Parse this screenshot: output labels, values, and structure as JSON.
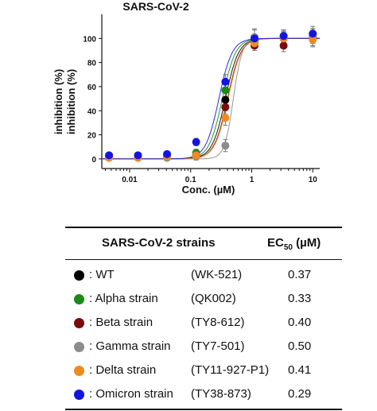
{
  "chart_data": {
    "type": "scatter",
    "title": "SARS-CoV-2",
    "xlabel": "Conc. (µM)",
    "ylabel": "inhibition (%)",
    "ylabel_repeat": "inhibition (%)",
    "xscale": "log",
    "xlim": [
      0.0035,
      13
    ],
    "ylim": [
      -8,
      120
    ],
    "xticks": [
      0.01,
      0.1,
      1,
      10
    ],
    "xtick_labels": [
      "0.01",
      "0.1",
      "1",
      "10"
    ],
    "yticks": [
      0,
      20,
      40,
      60,
      80,
      100
    ],
    "ytick_labels": [
      "0",
      "20",
      "40",
      "60",
      "80",
      "100"
    ],
    "x": [
      0.0046,
      0.0137,
      0.041,
      0.123,
      0.37,
      1.11,
      3.33,
      10
    ],
    "grid": false,
    "series": [
      {
        "name": "WT",
        "color": "#000000",
        "ec50": 0.37,
        "values": [
          1,
          1,
          2,
          3,
          49,
          97,
          100,
          102
        ],
        "errors": [
          2,
          2,
          2,
          3,
          6,
          4,
          5,
          6
        ]
      },
      {
        "name": "Alpha strain",
        "color": "#1a8a1a",
        "ec50": 0.33,
        "values": [
          1,
          1,
          1,
          5,
          57,
          98,
          101,
          102
        ],
        "errors": [
          2,
          2,
          2,
          3,
          6,
          4,
          5,
          6
        ]
      },
      {
        "name": "Beta strain",
        "color": "#7a0c0c",
        "ec50": 0.4,
        "values": [
          2,
          1,
          2,
          3,
          43,
          94,
          94,
          100
        ],
        "errors": [
          2,
          2,
          2,
          3,
          6,
          4,
          5,
          6
        ]
      },
      {
        "name": "Gamma strain",
        "color": "#8c8c8c",
        "ec50": 0.5,
        "values": [
          1,
          1,
          1,
          2,
          11,
          101,
          102,
          102
        ],
        "errors": [
          2,
          2,
          2,
          3,
          5,
          6,
          5,
          6
        ]
      },
      {
        "name": "Delta strain",
        "color": "#f08a1e",
        "ec50": 0.41,
        "values": [
          1,
          1,
          2,
          3,
          34,
          96,
          100,
          99
        ],
        "errors": [
          2,
          2,
          2,
          3,
          6,
          4,
          5,
          6
        ]
      },
      {
        "name": "Omicron strain",
        "color": "#1414e0",
        "ec50": 0.29,
        "values": [
          3,
          3,
          4,
          14,
          64,
          100,
          102,
          104
        ],
        "errors": [
          2,
          2,
          2,
          3,
          6,
          8,
          5,
          6
        ]
      }
    ]
  },
  "table": {
    "header_strains": "SARS-CoV-2 strains",
    "header_ec50": "EC",
    "header_ec50_sub": "50",
    "header_ec50_unit": " (µM)",
    "rows": [
      {
        "label": ": WT",
        "id": "(WK-521)",
        "ec50": "0.37",
        "color": "#000000"
      },
      {
        "label": ": Alpha strain",
        "id": "(QK002)",
        "ec50": "0.33",
        "color": "#1a8a1a"
      },
      {
        "label": ": Beta strain",
        "id": "(TY8-612)",
        "ec50": "0.40",
        "color": "#7a0c0c"
      },
      {
        "label": ": Gamma strain",
        "id": "(TY7-501)",
        "ec50": "0.50",
        "color": "#8c8c8c"
      },
      {
        "label": ": Delta strain",
        "id": "(TY11-927-P1)",
        "ec50": "0.41",
        "color": "#f08a1e"
      },
      {
        "label": ": Omicron strain",
        "id": "(TY38-873)",
        "ec50": "0.29",
        "color": "#1414e0"
      }
    ]
  }
}
